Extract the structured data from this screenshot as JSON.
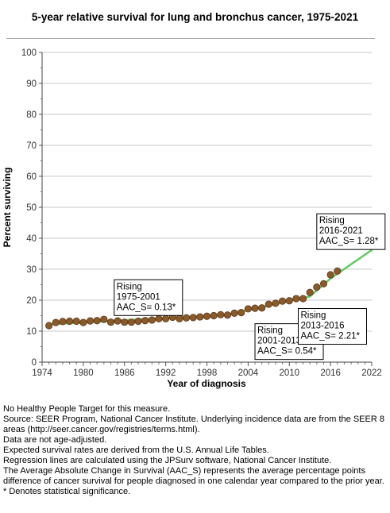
{
  "chart_data": {
    "type": "line",
    "title": "5-year relative survival for lung and bronchus cancer, 1975-2021",
    "xlabel": "Year of diagnosis",
    "ylabel": "Percent surviving",
    "xlim": [
      1974,
      2022
    ],
    "ylim": [
      0,
      100
    ],
    "x_ticks": [
      1974,
      1980,
      1986,
      1992,
      1998,
      2004,
      2010,
      2016,
      2022
    ],
    "y_ticks": [
      0,
      10,
      20,
      30,
      40,
      50,
      60,
      70,
      80,
      90,
      100
    ],
    "grid": true,
    "colors": {
      "regression": "#66cc66",
      "point_fill": "#8b5a2b",
      "point_stroke": "#5a3a1a",
      "grid": "#c8c8c8"
    },
    "series": [
      {
        "kind": "observed",
        "x": [
          1975,
          1976,
          1977,
          1978,
          1979,
          1980,
          1981,
          1982,
          1983,
          1984,
          1985,
          1986,
          1987,
          1988,
          1989,
          1990,
          1991,
          1992,
          1993,
          1994,
          1995,
          1996,
          1997,
          1998,
          1999,
          2000,
          2001,
          2002,
          2003,
          2004,
          2005,
          2006,
          2007,
          2008,
          2009,
          2010,
          2011,
          2012,
          2013,
          2014,
          2015,
          2016,
          2017
        ],
        "y": [
          11.8,
          12.8,
          13.1,
          13.2,
          13.2,
          12.8,
          13.3,
          13.4,
          13.8,
          12.9,
          13.3,
          12.9,
          12.9,
          13.2,
          13.4,
          13.6,
          14.0,
          14.0,
          14.5,
          14.0,
          14.3,
          14.4,
          14.6,
          14.8,
          15.0,
          15.3,
          15.2,
          15.8,
          16.0,
          17.2,
          17.4,
          17.5,
          18.7,
          19.0,
          19.7,
          19.8,
          20.5,
          20.5,
          22.5,
          24.2,
          25.3,
          28.2,
          29.4
        ]
      },
      {
        "kind": "regression",
        "segments": [
          {
            "x": [
              1975,
              2001
            ],
            "y": [
              12.2,
              15.3
            ]
          },
          {
            "x": [
              2001,
              2013
            ],
            "y": [
              15.3,
              21.2
            ]
          },
          {
            "x": [
              2013,
              2016
            ],
            "y": [
              21.2,
              27.0
            ]
          },
          {
            "x": [
              2016,
              2022
            ],
            "y": [
              27.0,
              36.2
            ]
          }
        ]
      }
    ],
    "annotations": [
      {
        "lines": [
          "Rising",
          "1975-2001",
          "AAC_S=  0.13*"
        ],
        "anchor_x": 1984.5,
        "anchor_y": 26.6
      },
      {
        "lines": [
          "Rising",
          "2001-2013",
          "AAC_S=  0.54*"
        ],
        "anchor_x": 2005.0,
        "anchor_y": 12.4
      },
      {
        "lines": [
          "Rising",
          "2013-2016",
          "AAC_S=  2.21*"
        ],
        "anchor_x": 2011.3,
        "anchor_y": 17.3
      },
      {
        "lines": [
          "Rising",
          "2016-2021",
          "AAC_S=  1.28*"
        ],
        "anchor_x": 2014.0,
        "anchor_y": 47.9
      }
    ]
  },
  "notes": [
    "No Healthy People Target for this measure.",
    "Source: SEER Program, National Cancer Institute. Underlying incidence data are from the SEER 8 areas (http://seer.cancer.gov/registries/terms.html).",
    "Data are not age-adjusted.",
    "Expected survival rates are derived from the U.S. Annual Life Tables.",
    "Regression lines are calculated using the JPSurv software, National Cancer Institute.",
    "The Average Absolute Change in Survival (AAC_S) represents the average percentage points difference of cancer survival for people diagnosed in one calendar year compared to the prior year.",
    "* Denotes statistical significance."
  ]
}
